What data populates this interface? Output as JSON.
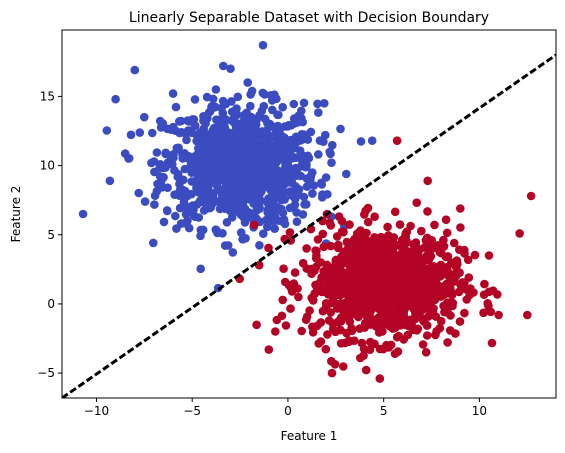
{
  "chart_data": {
    "type": "scatter",
    "title": "Linearly Separable Dataset with Decision Boundary",
    "xlabel": "Feature 1",
    "ylabel": "Feature 2",
    "xlim": [
      -11.8,
      14.0
    ],
    "ylim": [
      -6.8,
      19.8
    ],
    "xticks": [
      -10,
      -5,
      0,
      5,
      10
    ],
    "yticks": [
      -5,
      0,
      5,
      10,
      15
    ],
    "grid": false,
    "legend": "none",
    "series": [
      {
        "color": "#3b4cc0",
        "center": [
          -2.5,
          10.0
        ],
        "spread": [
          2.0,
          2.2
        ],
        "count": 1000,
        "outliers": [
          [
            -1.3,
            18.7
          ],
          [
            -8.0,
            16.9
          ],
          [
            -3.0,
            17.0
          ],
          [
            -9.0,
            14.8
          ],
          [
            -10.7,
            6.5
          ],
          [
            1.9,
            14.5
          ],
          [
            4.4,
            11.8
          ],
          [
            3.3,
            4.4
          ],
          [
            -9.3,
            8.9
          ],
          [
            -2.1,
            16.0
          ],
          [
            -6.0,
            15.2
          ],
          [
            -7.5,
            13.5
          ]
        ]
      },
      {
        "color": "#b40426",
        "center": [
          5.0,
          1.5
        ],
        "spread": [
          2.0,
          2.0
        ],
        "count": 1000,
        "outliers": [
          [
            12.7,
            7.8
          ],
          [
            12.1,
            5.1
          ],
          [
            12.5,
            -0.8
          ],
          [
            5.7,
            11.8
          ],
          [
            7.3,
            8.9
          ],
          [
            -1.0,
            -3.3
          ],
          [
            2.3,
            -5.0
          ],
          [
            4.8,
            -5.4
          ],
          [
            11.0,
            -0.8
          ],
          [
            -1.5,
            2.8
          ],
          [
            9.0,
            6.9
          ],
          [
            10.5,
            3.5
          ]
        ]
      }
    ],
    "decision_boundary": {
      "color": "#000000",
      "style": "dashed",
      "points": [
        [
          -11.8,
          -6.8
        ],
        [
          14.0,
          18.0
        ]
      ]
    }
  }
}
